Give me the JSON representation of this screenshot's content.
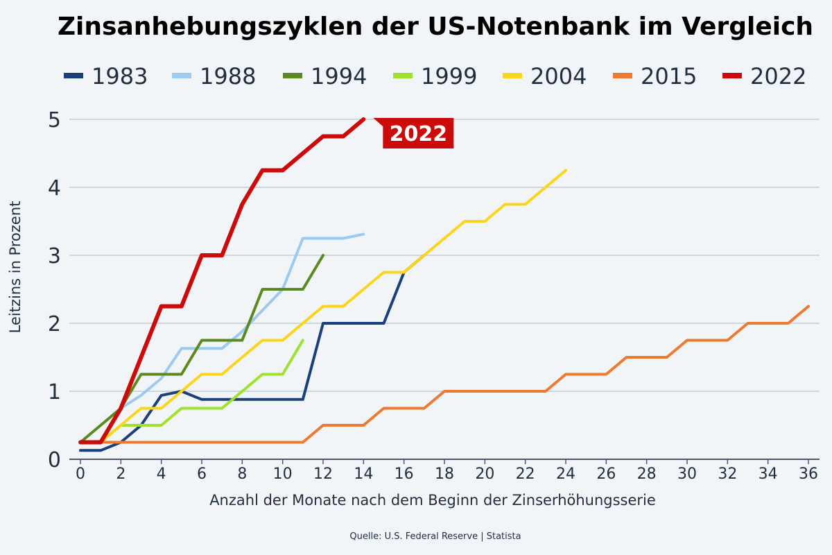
{
  "chart_data": {
    "type": "line",
    "title": "Zinsanhebungszyklen der US-Notenbank im Vergleich",
    "xlabel": "Anzahl der Monate nach dem Beginn der Zinserhöhungsserie",
    "ylabel": "Leitzins in Prozent",
    "source": "Quelle: U.S. Federal Reserve | Statista",
    "xlim": [
      0,
      36
    ],
    "ylim": [
      0,
      5
    ],
    "x_ticks": [
      0,
      2,
      4,
      6,
      8,
      10,
      12,
      14,
      16,
      18,
      20,
      22,
      24,
      26,
      28,
      30,
      32,
      34,
      36
    ],
    "y_ticks": [
      0,
      1,
      2,
      3,
      4,
      5
    ],
    "grid": true,
    "legend_position": "top",
    "callout": {
      "series": "2022",
      "text": "2022"
    },
    "series": [
      {
        "name": "1983",
        "color": "#1b3f7a",
        "points": [
          [
            0,
            0.13
          ],
          [
            1,
            0.13
          ],
          [
            2,
            0.25
          ],
          [
            3,
            0.5
          ],
          [
            4,
            0.94
          ],
          [
            5,
            1.0
          ],
          [
            6,
            0.88
          ],
          [
            7,
            0.88
          ],
          [
            8,
            0.88
          ],
          [
            9,
            0.88
          ],
          [
            10,
            0.88
          ],
          [
            11,
            0.88
          ],
          [
            12,
            2.0
          ],
          [
            13,
            2.0
          ],
          [
            14,
            2.0
          ],
          [
            15,
            2.0
          ],
          [
            16,
            2.75
          ],
          [
            17,
            3.0
          ]
        ]
      },
      {
        "name": "1988",
        "color": "#9ccaf0",
        "points": [
          [
            0,
            0.25
          ],
          [
            1,
            0.25
          ],
          [
            2,
            0.75
          ],
          [
            3,
            0.94
          ],
          [
            4,
            1.19
          ],
          [
            5,
            1.63
          ],
          [
            6,
            1.63
          ],
          [
            7,
            1.63
          ],
          [
            8,
            1.88
          ],
          [
            9,
            2.19
          ],
          [
            10,
            2.5
          ],
          [
            11,
            3.25
          ],
          [
            12,
            3.25
          ],
          [
            13,
            3.25
          ],
          [
            14,
            3.31
          ]
        ]
      },
      {
        "name": "1994",
        "color": "#5a8a1e",
        "points": [
          [
            0,
            0.25
          ],
          [
            1,
            0.5
          ],
          [
            2,
            0.75
          ],
          [
            3,
            1.25
          ],
          [
            4,
            1.25
          ],
          [
            5,
            1.25
          ],
          [
            6,
            1.75
          ],
          [
            7,
            1.75
          ],
          [
            8,
            1.75
          ],
          [
            9,
            2.5
          ],
          [
            10,
            2.5
          ],
          [
            11,
            2.5
          ],
          [
            12,
            3.0
          ]
        ]
      },
      {
        "name": "1999",
        "color": "#9ee22e",
        "points": [
          [
            0,
            0.25
          ],
          [
            1,
            0.25
          ],
          [
            2,
            0.5
          ],
          [
            3,
            0.5
          ],
          [
            4,
            0.5
          ],
          [
            5,
            0.75
          ],
          [
            6,
            0.75
          ],
          [
            7,
            0.75
          ],
          [
            8,
            1.0
          ],
          [
            9,
            1.25
          ],
          [
            10,
            1.25
          ],
          [
            11,
            1.75
          ]
        ]
      },
      {
        "name": "2004",
        "color": "#fad51a",
        "points": [
          [
            0,
            0.25
          ],
          [
            1,
            0.25
          ],
          [
            2,
            0.5
          ],
          [
            3,
            0.75
          ],
          [
            4,
            0.75
          ],
          [
            5,
            1.0
          ],
          [
            6,
            1.25
          ],
          [
            7,
            1.25
          ],
          [
            8,
            1.5
          ],
          [
            9,
            1.75
          ],
          [
            10,
            1.75
          ],
          [
            11,
            2.0
          ],
          [
            12,
            2.25
          ],
          [
            13,
            2.25
          ],
          [
            14,
            2.5
          ],
          [
            15,
            2.75
          ],
          [
            16,
            2.75
          ],
          [
            17,
            3.0
          ],
          [
            18,
            3.25
          ],
          [
            19,
            3.5
          ],
          [
            20,
            3.5
          ],
          [
            21,
            3.75
          ],
          [
            22,
            3.75
          ],
          [
            23,
            4.0
          ],
          [
            24,
            4.25
          ]
        ]
      },
      {
        "name": "2015",
        "color": "#ee7a30",
        "points": [
          [
            0,
            0.25
          ],
          [
            11,
            0.25
          ],
          [
            12,
            0.5
          ],
          [
            13,
            0.5
          ],
          [
            14,
            0.5
          ],
          [
            15,
            0.75
          ],
          [
            16,
            0.75
          ],
          [
            17,
            0.75
          ],
          [
            18,
            1.0
          ],
          [
            19,
            1.0
          ],
          [
            20,
            1.0
          ],
          [
            21,
            1.0
          ],
          [
            22,
            1.0
          ],
          [
            23,
            1.0
          ],
          [
            24,
            1.25
          ],
          [
            25,
            1.25
          ],
          [
            26,
            1.25
          ],
          [
            27,
            1.5
          ],
          [
            28,
            1.5
          ],
          [
            29,
            1.5
          ],
          [
            30,
            1.75
          ],
          [
            31,
            1.75
          ],
          [
            32,
            1.75
          ],
          [
            33,
            2.0
          ],
          [
            34,
            2.0
          ],
          [
            35,
            2.0
          ],
          [
            36,
            2.25
          ]
        ]
      },
      {
        "name": "2022",
        "color": "#cc0a0a",
        "points": [
          [
            0,
            0.25
          ],
          [
            1,
            0.25
          ],
          [
            2,
            0.75
          ],
          [
            3,
            1.5
          ],
          [
            4,
            2.25
          ],
          [
            5,
            2.25
          ],
          [
            6,
            3.0
          ],
          [
            7,
            3.0
          ],
          [
            8,
            3.75
          ],
          [
            9,
            4.25
          ],
          [
            10,
            4.25
          ],
          [
            11,
            4.5
          ],
          [
            12,
            4.75
          ],
          [
            13,
            4.75
          ],
          [
            14,
            5.0
          ]
        ]
      }
    ]
  }
}
